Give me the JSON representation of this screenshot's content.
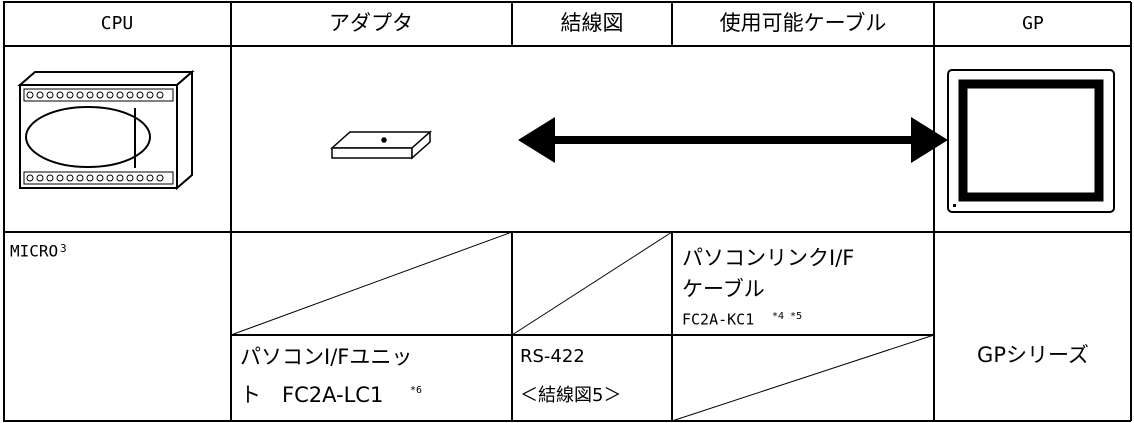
{
  "table": {
    "headers": [
      "CPU",
      "アダプタ",
      "結線図",
      "使用可能ケーブル",
      "GP"
    ],
    "cpu": {
      "name": "MICRO",
      "sup": "3"
    },
    "adapter": {
      "lines": [
        "パソコンI/Fユニッ",
        "ト　FC2A-LC1"
      ],
      "note": "*6"
    },
    "wiring": {
      "lines": [
        "RS-422",
        "＜結線図5＞"
      ]
    },
    "cable": {
      "lines": [
        "パソコンリンクI/F",
        "ケーブル"
      ],
      "model": "FC2A-KC1",
      "notes": "*4 *5"
    },
    "gp": "GPシリーズ"
  }
}
